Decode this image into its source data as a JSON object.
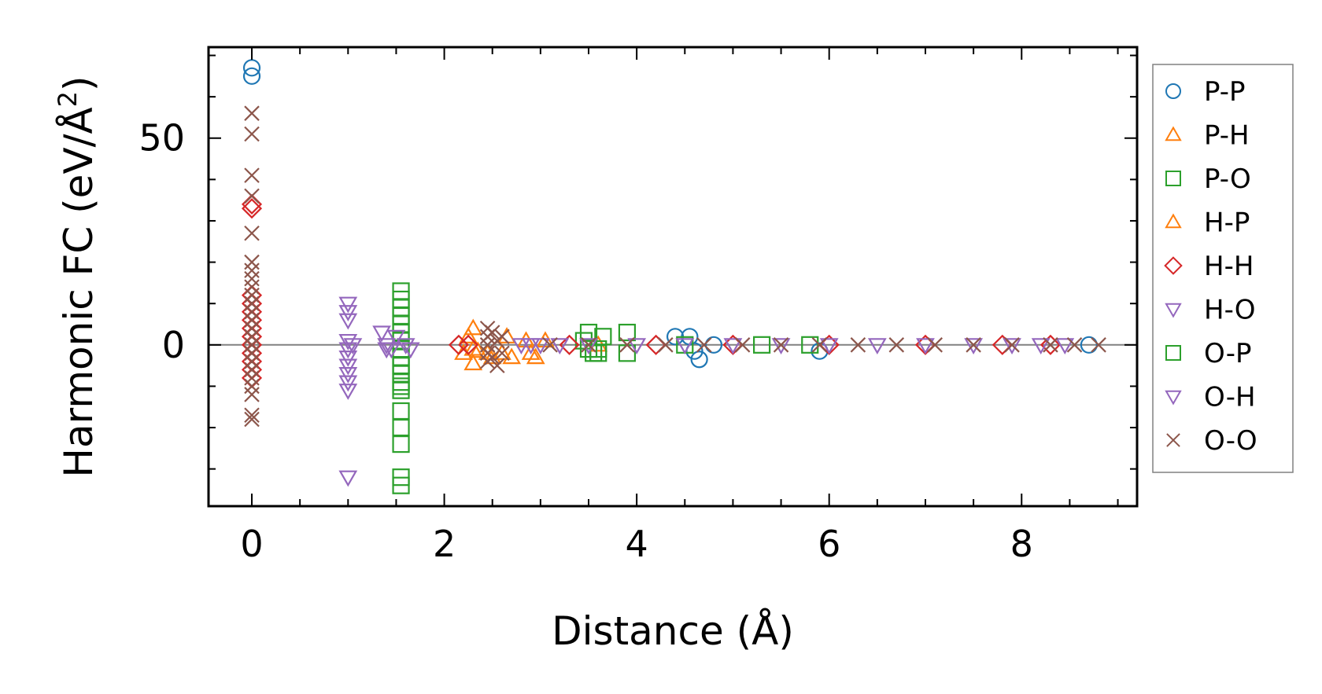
{
  "chart_data": {
    "type": "scatter",
    "title": "",
    "xlabel": "Distance (Å)",
    "ylabel_main": "Harmonic FC (eV/Å",
    "ylabel_sup": "2",
    "ylabel_close": ")",
    "xlim": [
      -0.45,
      9.2
    ],
    "ylim": [
      -39,
      72
    ],
    "x_ticks": [
      0,
      2,
      4,
      6,
      8
    ],
    "x_tick_labels": [
      "0",
      "2",
      "4",
      "6",
      "8"
    ],
    "y_ticks": [
      0,
      50
    ],
    "y_tick_labels": [
      "0",
      "50"
    ],
    "reference_line_y": 0,
    "grid": false,
    "legend_position": "right, outside plot",
    "series": [
      {
        "name": "P-P",
        "marker": "circle",
        "color": "#1f77b4",
        "filled": false,
        "points": [
          [
            0,
            67
          ],
          [
            0,
            65
          ],
          [
            4.4,
            2
          ],
          [
            4.55,
            2
          ],
          [
            4.6,
            -1.5
          ],
          [
            4.65,
            -3.5
          ],
          [
            4.8,
            0
          ],
          [
            5.9,
            -1.5
          ],
          [
            8.7,
            0
          ]
        ]
      },
      {
        "name": "P-H",
        "marker": "triangle-up",
        "color": "#ff7f0e",
        "filled": false,
        "points": [
          [
            2.25,
            2
          ],
          [
            2.3,
            4
          ],
          [
            2.35,
            -1.5
          ],
          [
            2.3,
            -4.5
          ],
          [
            2.5,
            -3
          ],
          [
            2.65,
            2
          ],
          [
            2.7,
            -3
          ],
          [
            2.85,
            1
          ],
          [
            2.95,
            -3
          ],
          [
            3.05,
            1
          ],
          [
            3.6,
            0
          ]
        ]
      },
      {
        "name": "P-O",
        "marker": "square",
        "color": "#2ca02c",
        "filled": false,
        "points": [
          [
            1.55,
            13
          ],
          [
            1.55,
            11
          ],
          [
            1.55,
            9
          ],
          [
            1.55,
            7
          ],
          [
            1.55,
            5
          ],
          [
            1.55,
            3
          ],
          [
            1.55,
            1
          ],
          [
            1.55,
            -1
          ],
          [
            1.55,
            -3
          ],
          [
            1.55,
            -5
          ],
          [
            1.55,
            -7
          ],
          [
            1.55,
            -9
          ],
          [
            1.55,
            -11
          ],
          [
            1.55,
            -16
          ],
          [
            1.55,
            -20
          ],
          [
            1.55,
            -24
          ],
          [
            1.55,
            -32
          ],
          [
            1.55,
            -34
          ],
          [
            3.5,
            3
          ],
          [
            3.45,
            1
          ],
          [
            3.5,
            -1
          ],
          [
            3.6,
            -2
          ],
          [
            3.65,
            2
          ],
          [
            3.9,
            3
          ],
          [
            3.9,
            -2
          ],
          [
            4.5,
            0
          ],
          [
            5.3,
            0
          ],
          [
            5.8,
            0
          ]
        ]
      },
      {
        "name": "H-P",
        "marker": "triangle-up",
        "color": "#ff7f0e",
        "filled": false,
        "points": [
          [
            2.2,
            -2
          ],
          [
            2.3,
            -1
          ],
          [
            2.45,
            -2
          ],
          [
            2.6,
            -2
          ],
          [
            2.9,
            -2
          ]
        ]
      },
      {
        "name": "H-H",
        "marker": "diamond",
        "color": "#d62728",
        "filled": false,
        "points": [
          [
            0,
            34
          ],
          [
            0,
            33
          ],
          [
            0,
            12
          ],
          [
            0,
            10
          ],
          [
            0,
            8
          ],
          [
            0,
            6
          ],
          [
            0,
            4
          ],
          [
            0,
            2
          ],
          [
            0,
            0
          ],
          [
            0,
            -2
          ],
          [
            0,
            -4
          ],
          [
            0,
            -6
          ],
          [
            0,
            -8
          ],
          [
            2.15,
            0
          ],
          [
            2.25,
            0
          ],
          [
            3.3,
            0
          ],
          [
            4.2,
            0
          ],
          [
            5.0,
            0
          ],
          [
            6.0,
            0
          ],
          [
            7.0,
            0
          ],
          [
            7.8,
            0
          ],
          [
            8.3,
            0
          ]
        ]
      },
      {
        "name": "H-O",
        "marker": "triangle-down",
        "color": "#9467bd",
        "filled": false,
        "points": [
          [
            1.0,
            10
          ],
          [
            1.0,
            8
          ],
          [
            1.0,
            6
          ],
          [
            1.0,
            1
          ],
          [
            1.0,
            -1
          ],
          [
            1.0,
            -3
          ],
          [
            1.0,
            -5
          ],
          [
            1.0,
            -7
          ],
          [
            1.0,
            -9
          ],
          [
            1.0,
            -11
          ],
          [
            1.0,
            -32
          ],
          [
            1.35,
            3
          ],
          [
            1.4,
            0
          ],
          [
            1.45,
            -1
          ],
          [
            1.5,
            2
          ],
          [
            1.6,
            0
          ],
          [
            1.65,
            -1
          ]
        ]
      },
      {
        "name": "O-P",
        "marker": "square",
        "color": "#2ca02c",
        "filled": false,
        "points": [
          [
            1.55,
            -5
          ],
          [
            1.55,
            -10
          ],
          [
            3.55,
            -2
          ],
          [
            3.6,
            -1
          ]
        ]
      },
      {
        "name": "O-H",
        "marker": "triangle-down",
        "color": "#9467bd",
        "filled": false,
        "points": [
          [
            1.05,
            0
          ],
          [
            1.4,
            -1
          ],
          [
            2.8,
            0
          ],
          [
            2.9,
            0
          ],
          [
            3.0,
            0
          ],
          [
            3.2,
            0
          ],
          [
            3.5,
            0
          ],
          [
            4.0,
            0
          ],
          [
            4.5,
            0
          ],
          [
            5.0,
            0
          ],
          [
            5.5,
            0
          ],
          [
            6.0,
            0
          ],
          [
            6.5,
            0
          ],
          [
            7.0,
            0
          ],
          [
            7.5,
            0
          ],
          [
            7.9,
            0
          ],
          [
            8.2,
            0
          ],
          [
            8.45,
            0
          ]
        ]
      },
      {
        "name": "O-O",
        "marker": "x",
        "color": "#8c564b",
        "filled": false,
        "points": [
          [
            0,
            56
          ],
          [
            0,
            51
          ],
          [
            0,
            41
          ],
          [
            0,
            36
          ],
          [
            0,
            27
          ],
          [
            0,
            20
          ],
          [
            0,
            18
          ],
          [
            0,
            16
          ],
          [
            0,
            14
          ],
          [
            0,
            12
          ],
          [
            0,
            10
          ],
          [
            0,
            8
          ],
          [
            0,
            6
          ],
          [
            0,
            4
          ],
          [
            0,
            2
          ],
          [
            0,
            0
          ],
          [
            0,
            -2
          ],
          [
            0,
            -4
          ],
          [
            0,
            -6
          ],
          [
            0,
            -8
          ],
          [
            0,
            -10
          ],
          [
            0,
            -12
          ],
          [
            0,
            -17
          ],
          [
            0,
            -18
          ],
          [
            2.45,
            4
          ],
          [
            2.45,
            2
          ],
          [
            2.45,
            0
          ],
          [
            2.45,
            -2
          ],
          [
            2.45,
            -4
          ],
          [
            2.5,
            3
          ],
          [
            2.5,
            -3
          ],
          [
            2.55,
            1
          ],
          [
            2.55,
            -5
          ],
          [
            2.6,
            2
          ],
          [
            2.6,
            -2
          ],
          [
            3.1,
            0
          ],
          [
            3.5,
            0
          ],
          [
            3.9,
            0
          ],
          [
            4.3,
            0
          ],
          [
            4.7,
            0
          ],
          [
            5.1,
            0
          ],
          [
            5.5,
            0
          ],
          [
            5.9,
            0
          ],
          [
            6.3,
            0
          ],
          [
            6.7,
            0
          ],
          [
            7.1,
            0
          ],
          [
            7.5,
            0
          ],
          [
            7.9,
            0
          ],
          [
            8.3,
            0
          ],
          [
            8.55,
            0
          ],
          [
            8.8,
            0
          ]
        ]
      }
    ]
  }
}
